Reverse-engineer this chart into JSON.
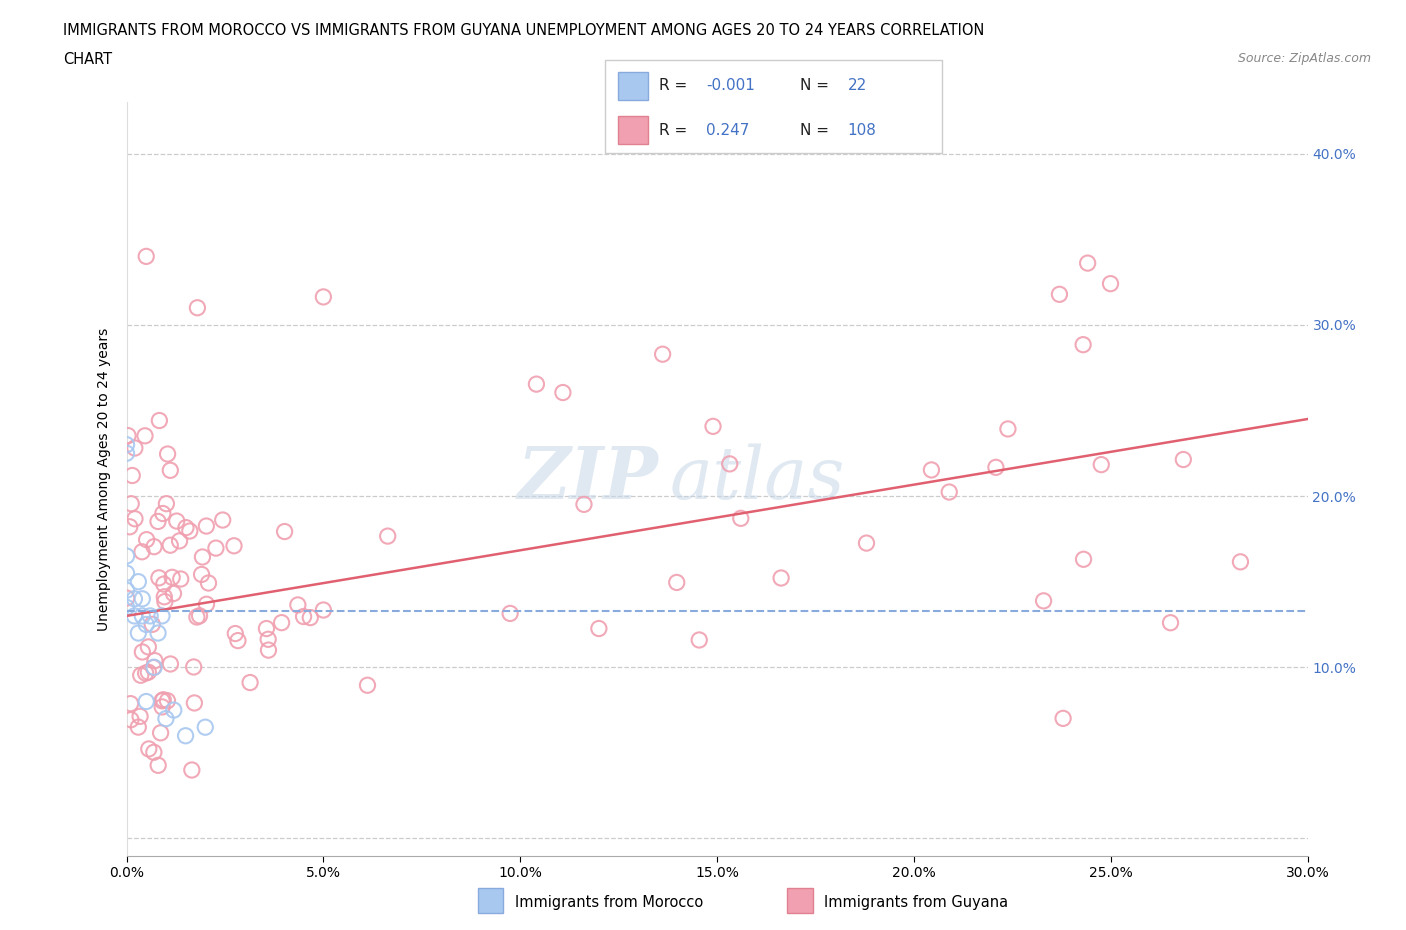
{
  "title_line1": "IMMIGRANTS FROM MOROCCO VS IMMIGRANTS FROM GUYANA UNEMPLOYMENT AMONG AGES 20 TO 24 YEARS CORRELATION",
  "title_line2": "CHART",
  "source_text": "Source: ZipAtlas.com",
  "ylabel": "Unemployment Among Ages 20 to 24 years",
  "xlabel_morocco": "Immigrants from Morocco",
  "xlabel_guyana": "Immigrants from Guyana",
  "watermark_zip": "ZIP",
  "watermark_atlas": "atlas",
  "morocco_R": -0.001,
  "morocco_N": 22,
  "guyana_R": 0.247,
  "guyana_N": 108,
  "morocco_color": "#a8c8f0",
  "guyana_color": "#f0a0b0",
  "morocco_line_color": "#88aadd",
  "guyana_line_color": "#e06070",
  "xlim": [
    0.0,
    0.3
  ],
  "ylim": [
    -0.01,
    0.43
  ],
  "x_ticks": [
    0.0,
    0.05,
    0.1,
    0.15,
    0.2,
    0.25,
    0.3
  ],
  "y_ticks": [
    0.0,
    0.1,
    0.2,
    0.3,
    0.4
  ],
  "right_y_ticks": [
    0.1,
    0.2,
    0.3,
    0.4
  ],
  "guyana_line_x0": 0.0,
  "guyana_line_y0": 0.13,
  "guyana_line_x1": 0.3,
  "guyana_line_y1": 0.245,
  "morocco_line_x0": 0.0,
  "morocco_line_y0": 0.133,
  "morocco_line_x1": 0.3,
  "morocco_line_y1": 0.133
}
